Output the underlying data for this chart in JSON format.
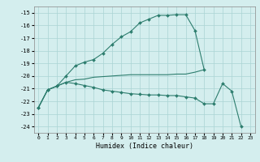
{
  "xlabel": "Humidex (Indice chaleur)",
  "background_color": "#d4eeee",
  "grid_color": "#aad4d4",
  "line_color": "#2d7d6e",
  "x_values": [
    0,
    1,
    2,
    3,
    4,
    5,
    6,
    7,
    8,
    9,
    10,
    11,
    12,
    13,
    14,
    15,
    16,
    17,
    18,
    19,
    20,
    21,
    22,
    23
  ],
  "line1_y": [
    -22.5,
    -21.1,
    -20.8,
    -20.0,
    -19.2,
    -18.9,
    -18.7,
    -18.2,
    -17.5,
    -16.9,
    -16.5,
    -15.8,
    -15.5,
    -15.2,
    -15.2,
    -15.15,
    -15.15,
    -16.4,
    -19.5,
    null,
    null,
    null,
    null,
    null
  ],
  "line2_y": [
    -22.5,
    -21.1,
    -20.8,
    -20.5,
    -20.3,
    -20.25,
    -20.1,
    -20.05,
    -20.0,
    -19.95,
    -19.9,
    -19.9,
    -19.9,
    -19.9,
    -19.9,
    -19.85,
    -19.85,
    -19.7,
    -19.5,
    null,
    null,
    null,
    null,
    null
  ],
  "line3_y": [
    -22.5,
    -21.1,
    -20.8,
    -20.5,
    -20.6,
    -20.75,
    -20.9,
    -21.1,
    -21.2,
    -21.3,
    -21.4,
    -21.45,
    -21.5,
    -21.5,
    -21.55,
    -21.55,
    -21.65,
    -21.75,
    -22.2,
    -22.2,
    -20.6,
    -21.2,
    -24.0,
    null
  ],
  "ylim": [
    -24.5,
    -14.5
  ],
  "xlim": [
    -0.5,
    23.5
  ],
  "yticks": [
    -15,
    -16,
    -17,
    -18,
    -19,
    -20,
    -21,
    -22,
    -23,
    -24
  ],
  "xticks": [
    0,
    1,
    2,
    3,
    4,
    5,
    6,
    7,
    8,
    9,
    10,
    11,
    12,
    13,
    14,
    15,
    16,
    17,
    18,
    19,
    20,
    21,
    22,
    23
  ]
}
